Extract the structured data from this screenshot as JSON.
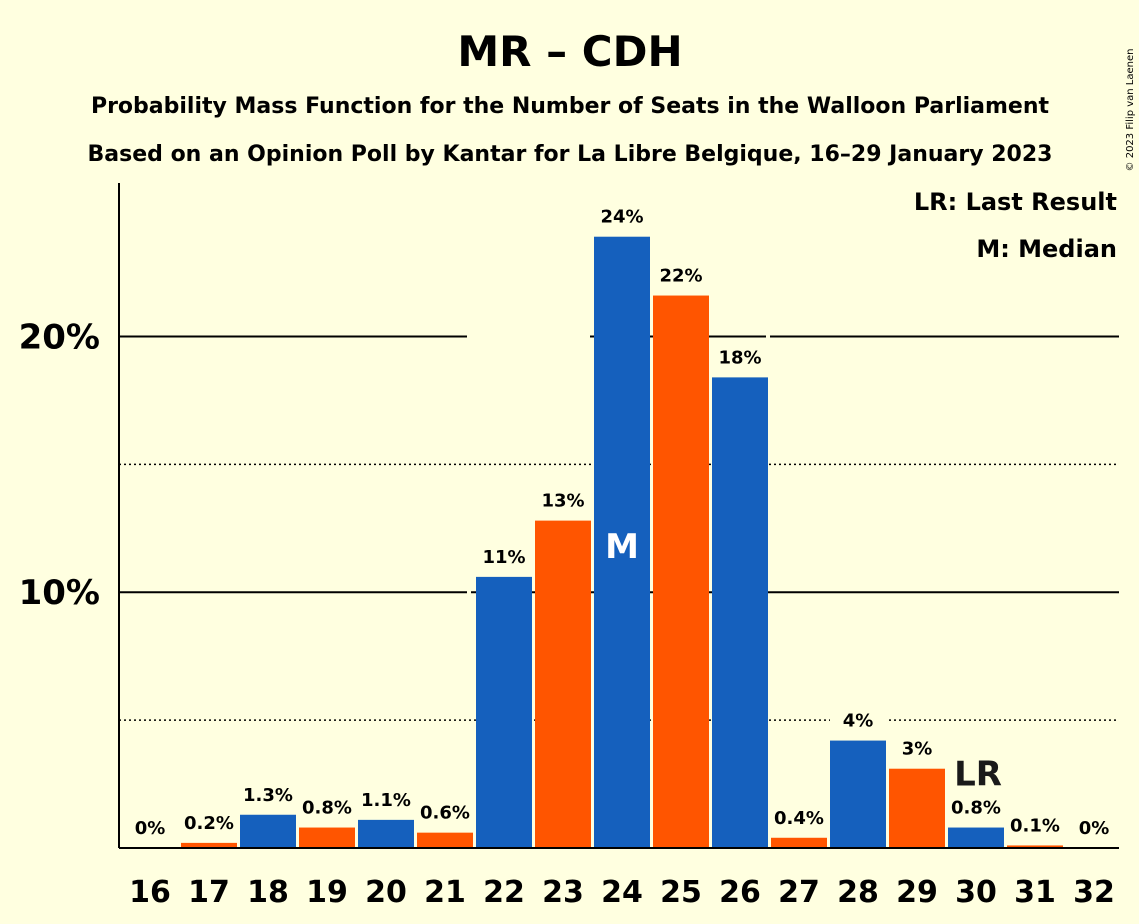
{
  "chart_data": {
    "type": "bar",
    "title": "MR – CDH",
    "subtitle_1": "Probability Mass Function for the Number of Seats in the Walloon Parliament",
    "subtitle_2": "Based on an Opinion Poll by Kantar for La Libre Belgique, 16–29 January 2023",
    "copyright": "© 2023 Filip van Laenen",
    "categories": [
      "16",
      "17",
      "18",
      "19",
      "20",
      "21",
      "22",
      "23",
      "24",
      "25",
      "26",
      "27",
      "28",
      "29",
      "30",
      "31",
      "32"
    ],
    "values": [
      0,
      0.2,
      1.3,
      0.8,
      1.1,
      0.6,
      10.6,
      12.8,
      23.9,
      21.6,
      18.4,
      0.4,
      4.2,
      3.1,
      0.8,
      0.1,
      0
    ],
    "data_labels": [
      "0%",
      "0.2%",
      "1.3%",
      "0.8%",
      "1.1%",
      "0.6%",
      "11%",
      "13%",
      "24%",
      "22%",
      "18%",
      "0.4%",
      "4%",
      "3%",
      "0.8%",
      "0.1%",
      "0%"
    ],
    "colors": [
      "#1560BD",
      "#FF5500",
      "#1560BD",
      "#FF5500",
      "#1560BD",
      "#FF5500",
      "#1560BD",
      "#FF5500",
      "#1560BD",
      "#FF5500",
      "#1560BD",
      "#FF5500",
      "#1560BD",
      "#FF5500",
      "#1560BD",
      "#FF5500",
      "#1560BD"
    ],
    "ylim": [
      0,
      26
    ],
    "yticks": [
      {
        "value": 10,
        "label": "10%"
      },
      {
        "value": 20,
        "label": "20%"
      }
    ],
    "minor_gridlines": [
      5,
      15
    ],
    "median_seat": "24",
    "median_mark": "M",
    "last_result_seat": "30",
    "last_result_mark": "LR",
    "legend": {
      "position": "top-right",
      "entries": [
        "LR: Last Result",
        "M: Median"
      ]
    }
  }
}
